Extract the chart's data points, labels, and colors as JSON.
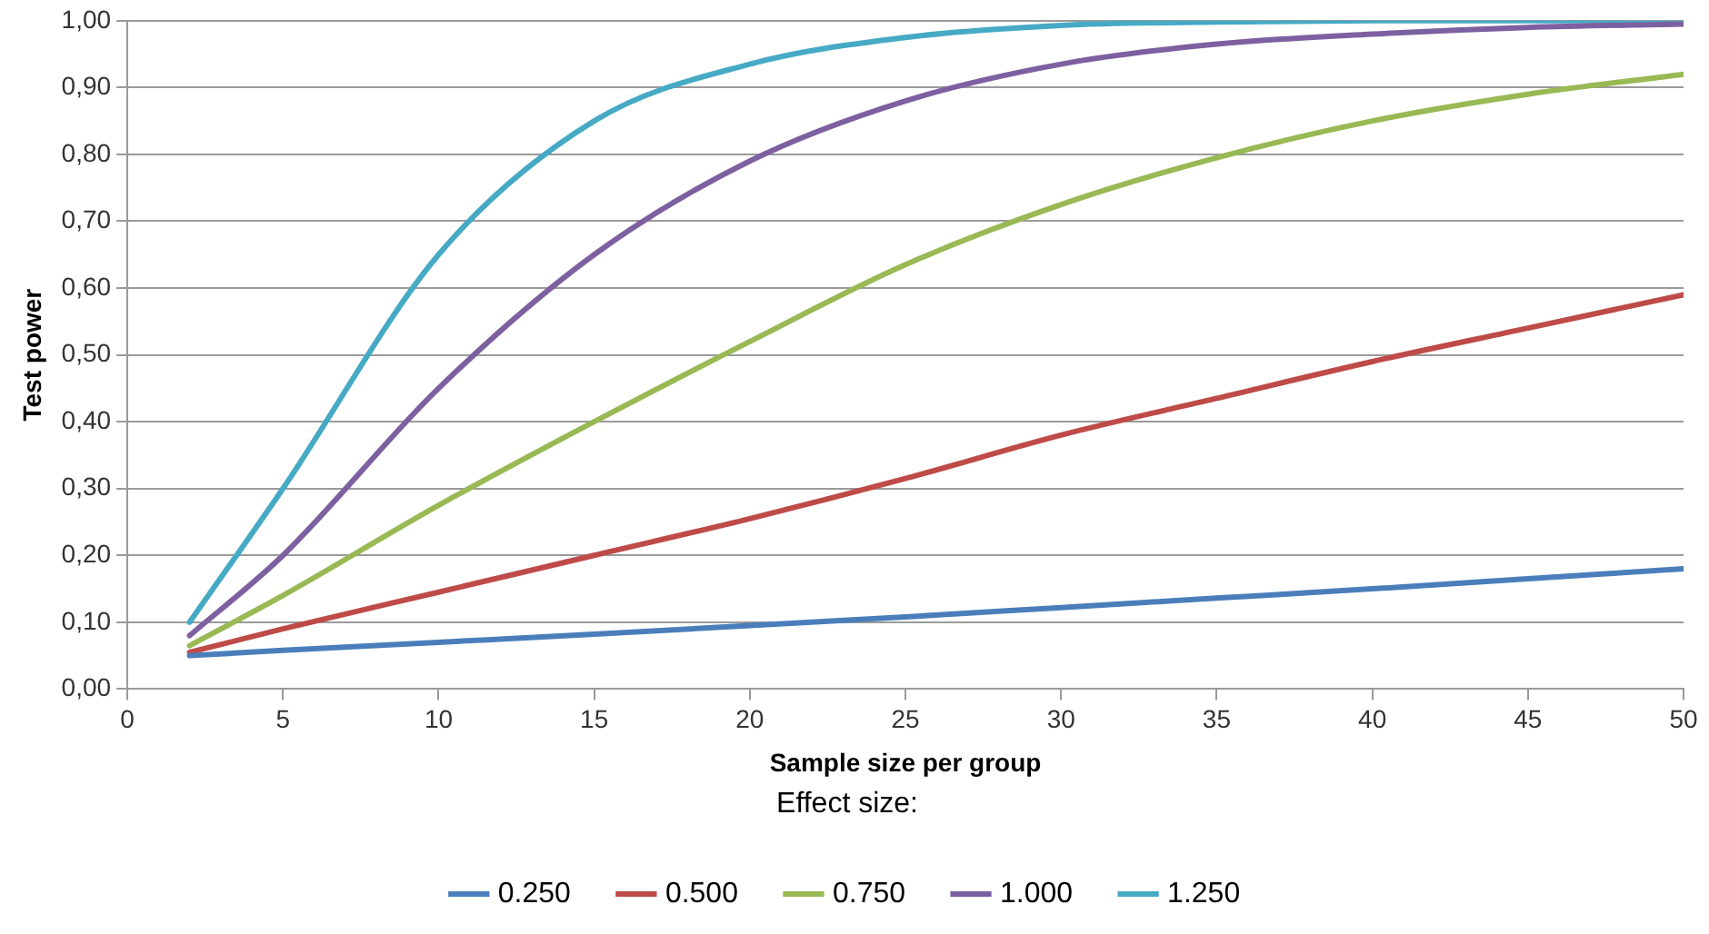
{
  "chart_data": {
    "type": "line",
    "xlabel": "Sample size per group",
    "ylabel": "Test power",
    "legend_title": "Effect size:",
    "legend": "bottom",
    "grid": "y",
    "marker": "none",
    "line_style": "solid",
    "xlim": [
      0,
      50
    ],
    "xticks": [
      0,
      5,
      10,
      15,
      20,
      25,
      30,
      35,
      40,
      45,
      50
    ],
    "ylim": [
      0,
      1
    ],
    "yticks": [
      {
        "value": 0,
        "label": "0,00"
      },
      {
        "value": 0.1,
        "label": "0,10"
      },
      {
        "value": 0.2,
        "label": "0,20"
      },
      {
        "value": 0.3,
        "label": "0,30"
      },
      {
        "value": 0.4,
        "label": "0,40"
      },
      {
        "value": 0.5,
        "label": "0,50"
      },
      {
        "value": 0.6,
        "label": "0,60"
      },
      {
        "value": 0.7,
        "label": "0,70"
      },
      {
        "value": 0.8,
        "label": "0,80"
      },
      {
        "value": 0.9,
        "label": "0,90"
      },
      {
        "value": 1,
        "label": "1,00"
      }
    ],
    "x": [
      2,
      5,
      10,
      15,
      20,
      25,
      30,
      35,
      40,
      45,
      50
    ],
    "series": [
      {
        "name": "0.250",
        "color": "#4a7ebb",
        "values": [
          0.05,
          0.058,
          0.07,
          0.082,
          0.095,
          0.108,
          0.122,
          0.136,
          0.15,
          0.165,
          0.18
        ]
      },
      {
        "name": "0.500",
        "color": "#be4b48",
        "values": [
          0.055,
          0.09,
          0.145,
          0.2,
          0.255,
          0.315,
          0.38,
          0.435,
          0.49,
          0.54,
          0.59
        ]
      },
      {
        "name": "0.750",
        "color": "#98b954",
        "values": [
          0.065,
          0.14,
          0.275,
          0.4,
          0.52,
          0.635,
          0.725,
          0.795,
          0.85,
          0.89,
          0.92
        ]
      },
      {
        "name": "1.000",
        "color": "#7d60a0",
        "values": [
          0.08,
          0.2,
          0.45,
          0.65,
          0.79,
          0.88,
          0.935,
          0.965,
          0.98,
          0.99,
          0.995
        ]
      },
      {
        "name": "1.250",
        "color": "#46aac5",
        "values": [
          0.1,
          0.3,
          0.65,
          0.85,
          0.935,
          0.975,
          0.993,
          0.998,
          1,
          1,
          1
        ]
      }
    ]
  }
}
